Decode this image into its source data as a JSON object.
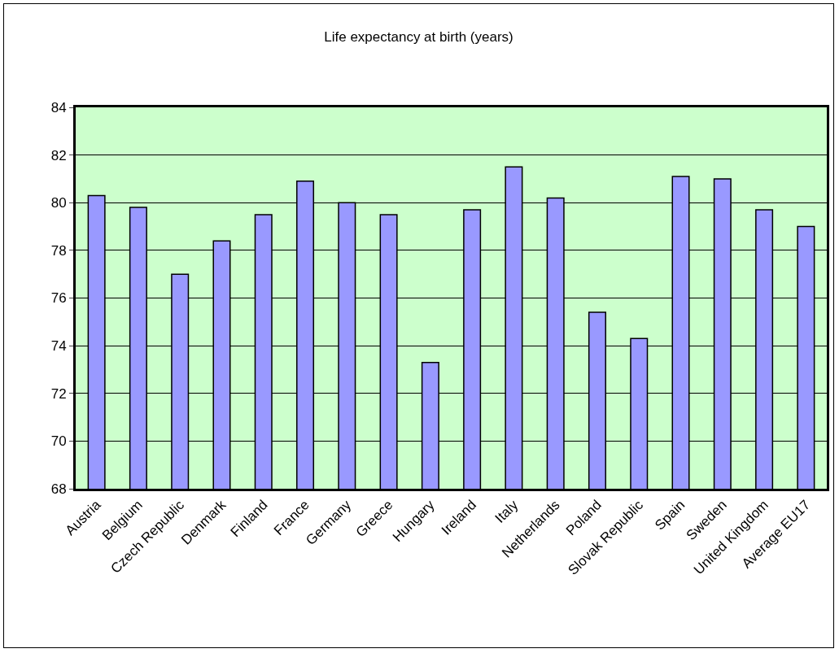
{
  "chart_data": {
    "type": "bar",
    "title": "Life expectancy at birth (years)",
    "categories": [
      "Austria",
      "Belgium",
      "Czech Republic",
      "Denmark",
      "Finland",
      "France",
      "Germany",
      "Greece",
      "Hungary",
      "Ireland",
      "Italy",
      "Netherlands",
      "Poland",
      "Slovak Republic",
      "Spain",
      "Sweden",
      "United Kingdom",
      "Average EU17"
    ],
    "values": [
      80.3,
      79.8,
      77.0,
      78.4,
      79.5,
      80.9,
      80.0,
      79.5,
      73.3,
      79.7,
      81.5,
      80.2,
      75.4,
      74.3,
      81.1,
      81.0,
      79.7,
      79.0
    ],
    "color": "#9999ff",
    "ylim": [
      68,
      84
    ],
    "yticks": [
      68,
      70,
      72,
      74,
      76,
      78,
      80,
      82,
      84
    ],
    "grid": "y"
  }
}
